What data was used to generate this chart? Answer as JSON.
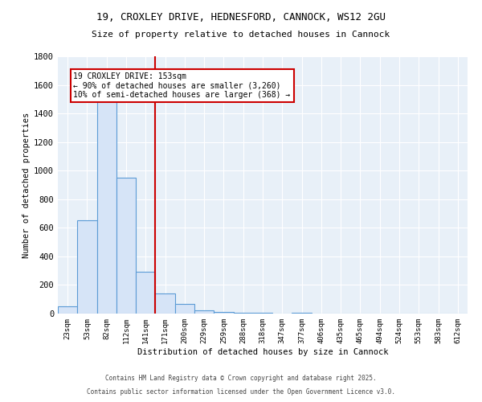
{
  "title1": "19, CROXLEY DRIVE, HEDNESFORD, CANNOCK, WS12 2GU",
  "title2": "Size of property relative to detached houses in Cannock",
  "xlabel": "Distribution of detached houses by size in Cannock",
  "ylabel": "Number of detached properties",
  "categories": [
    "23sqm",
    "53sqm",
    "82sqm",
    "112sqm",
    "141sqm",
    "171sqm",
    "200sqm",
    "229sqm",
    "259sqm",
    "288sqm",
    "318sqm",
    "347sqm",
    "377sqm",
    "406sqm",
    "435sqm",
    "465sqm",
    "494sqm",
    "524sqm",
    "553sqm",
    "583sqm",
    "612sqm"
  ],
  "values": [
    50,
    650,
    1500,
    950,
    290,
    140,
    65,
    20,
    10,
    5,
    3,
    2,
    8,
    2,
    0,
    0,
    0,
    0,
    0,
    0,
    0
  ],
  "bar_color_fill": "#d6e4f7",
  "bar_color_edge": "#5b9bd5",
  "vline_color": "#cc0000",
  "annotation_text": "19 CROXLEY DRIVE: 153sqm\n← 90% of detached houses are smaller (3,260)\n10% of semi-detached houses are larger (368) →",
  "annotation_box_color": "#cc0000",
  "ylim": [
    0,
    1800
  ],
  "yticks": [
    0,
    200,
    400,
    600,
    800,
    1000,
    1200,
    1400,
    1600,
    1800
  ],
  "bg_color": "#e8f0f8",
  "grid_color": "#ffffff",
  "footnote1": "Contains HM Land Registry data © Crown copyright and database right 2025.",
  "footnote2": "Contains public sector information licensed under the Open Government Licence v3.0."
}
